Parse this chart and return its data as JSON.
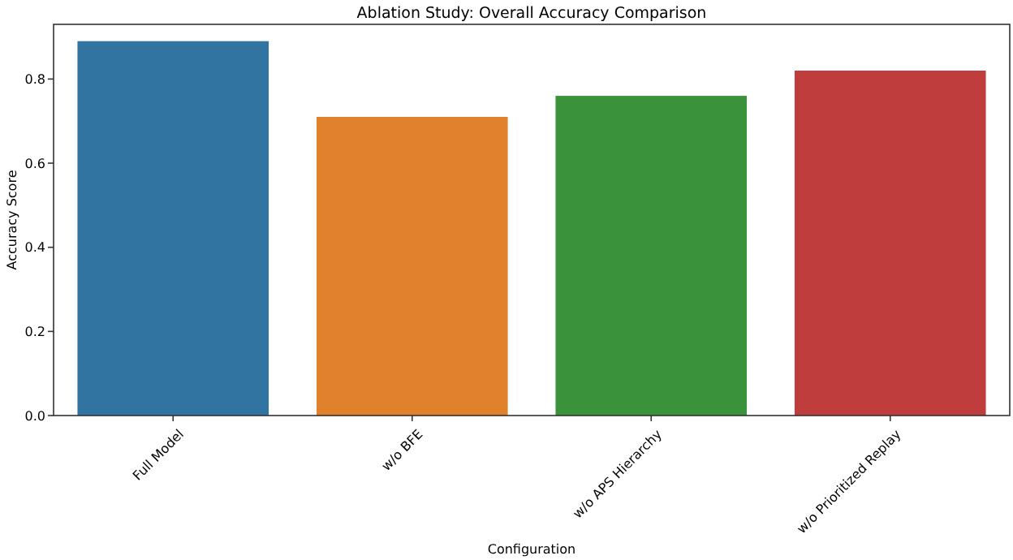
{
  "chart_data": {
    "type": "bar",
    "title": "Ablation Study: Overall Accuracy Comparison",
    "xlabel": "Configuration",
    "ylabel": "Accuracy Score",
    "categories": [
      "Full Model",
      "w/o BFE",
      "w/o APS Hierarchy",
      "w/o Prioritized Replay"
    ],
    "values": [
      0.89,
      0.71,
      0.76,
      0.82
    ],
    "colors": [
      "#3274a1",
      "#e1812c",
      "#3a923a",
      "#c03d3e"
    ],
    "ylim": [
      0,
      0.93
    ],
    "yticks": [
      {
        "value": 0,
        "label": "0.0"
      },
      {
        "value": 0.2,
        "label": "0.2"
      },
      {
        "value": 0.4,
        "label": "0.4"
      },
      {
        "value": 0.6,
        "label": "0.6"
      },
      {
        "value": 0.8,
        "label": "0.8"
      }
    ]
  }
}
